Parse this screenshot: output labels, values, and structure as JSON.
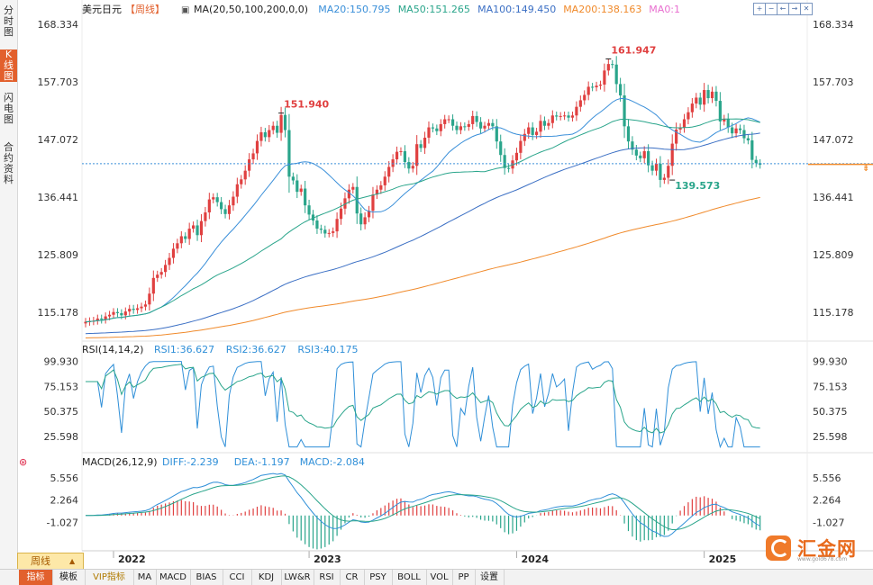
{
  "sidebar": {
    "tabs": [
      {
        "label": "分时图",
        "active": false
      },
      {
        "label": "K线图",
        "active": true
      },
      {
        "label": "闪电图",
        "active": false
      },
      {
        "label": "合约资料",
        "active": false
      }
    ]
  },
  "header": {
    "symbol": "美元日元",
    "period_tag": "【周线】",
    "ma_label": "MA(20,50,100,200,0,0)",
    "ma_values": [
      {
        "text": "MA20:150.795",
        "color": "#3a8fd9"
      },
      {
        "text": "MA50:151.265",
        "color": "#2aa58b"
      },
      {
        "text": "MA100:149.450",
        "color": "#3b6fc4"
      },
      {
        "text": "MA200:138.163",
        "color": "#f08a2b"
      },
      {
        "text": "MA0:1",
        "color": "#e86fd0"
      }
    ]
  },
  "toolbar": {
    "buttons": [
      "+",
      "−",
      "←",
      "→",
      "✕"
    ]
  },
  "rsi_header": {
    "label": "RSI(14,14,2)",
    "values": [
      {
        "text": "RSI1:36.627",
        "color": "#2f8fd8"
      },
      {
        "text": "RSI2:36.627",
        "color": "#2f8fd8"
      },
      {
        "text": "RSI3:40.175",
        "color": "#2f8fd8"
      }
    ]
  },
  "macd_header": {
    "label": "MACD(26,12,9)",
    "values": [
      {
        "text": "DIFF:-2.239",
        "color": "#2f8fd8"
      },
      {
        "text": "DEA:-1.197",
        "color": "#2f8fd8"
      },
      {
        "text": "MACD:-2.084",
        "color": "#2f8fd8"
      }
    ]
  },
  "bottom_bar": {
    "period": "周线",
    "items": [
      {
        "label": "指标",
        "active": true
      },
      {
        "label": "模板"
      },
      {
        "label": "VIP指标",
        "vip": true
      },
      {
        "label": "MA"
      },
      {
        "label": "MACD"
      },
      {
        "label": "BIAS"
      },
      {
        "label": "CCI"
      },
      {
        "label": "KDJ"
      },
      {
        "label": "LW&R"
      },
      {
        "label": "RSI"
      },
      {
        "label": "CR"
      },
      {
        "label": "PSY"
      },
      {
        "label": "BOLL"
      },
      {
        "label": "VOL"
      },
      {
        "label": "PP"
      },
      {
        "label": "设置"
      }
    ]
  },
  "logo": {
    "name": "汇金网",
    "url": "www.gold678.com"
  },
  "chart_data": {
    "type": "candlestick",
    "title": "美元日元 周线",
    "price_axis": {
      "ticks": [
        168.334,
        157.703,
        147.072,
        136.441,
        125.809,
        115.178
      ],
      "range": [
        110.5,
        169.5
      ]
    },
    "current_price": 142.6,
    "x_axis": {
      "labels": [
        "2022",
        "2023",
        "2024",
        "2025"
      ],
      "label_index": [
        7,
        56,
        108,
        155
      ]
    },
    "annotations": [
      {
        "text": "151.940",
        "index": 49,
        "value": 151.94,
        "side": "top",
        "color": "#e04040"
      },
      {
        "text": "161.947",
        "index": 131,
        "value": 161.947,
        "side": "top",
        "color": "#e04040"
      },
      {
        "text": "139.573",
        "index": 147,
        "value": 139.573,
        "side": "bottom",
        "color": "#2aa58b"
      }
    ],
    "candle_colors": {
      "up": "#e04040",
      "down": "#2aa58b"
    },
    "closes": [
      113.4,
      113.5,
      113.6,
      114.0,
      113.8,
      114.4,
      114.7,
      115.2,
      115.0,
      114.6,
      115.3,
      115.8,
      115.6,
      115.9,
      116.2,
      116.6,
      118.6,
      121.5,
      122.1,
      122.6,
      123.9,
      125.2,
      126.9,
      127.9,
      129.2,
      128.7,
      130.6,
      131.2,
      129.4,
      132.0,
      133.6,
      136.0,
      136.4,
      135.5,
      134.2,
      133.3,
      134.9,
      136.5,
      138.8,
      139.7,
      141.3,
      143.4,
      144.5,
      146.8,
      148.4,
      147.5,
      148.8,
      149.6,
      148.3,
      151.6,
      148.8,
      140.2,
      139.5,
      137.4,
      138.0,
      134.9,
      133.2,
      132.1,
      130.6,
      130.4,
      129.7,
      129.8,
      130.1,
      132.4,
      134.3,
      136.2,
      137.8,
      138.3,
      133.4,
      131.4,
      132.7,
      133.9,
      136.9,
      137.8,
      138.6,
      140.2,
      142.0,
      143.4,
      144.8,
      144.9,
      142.9,
      141.7,
      142.2,
      146.2,
      145.5,
      147.4,
      149.3,
      149.1,
      148.6,
      149.9,
      150.8,
      150.8,
      149.6,
      148.8,
      149.5,
      149.4,
      149.9,
      151.4,
      150.3,
      149.1,
      149.6,
      150.1,
      149.5,
      146.7,
      144.2,
      141.8,
      141.7,
      143.2,
      144.6,
      146.8,
      148.1,
      149.3,
      147.9,
      148.5,
      150.5,
      149.6,
      150.1,
      151.5,
      151.3,
      151.4,
      151.5,
      151.1,
      151.5,
      153.1,
      154.3,
      155.3,
      156.8,
      156.7,
      157.0,
      157.2,
      159.8,
      161.0,
      160.9,
      157.3,
      155.2,
      149.5,
      146.7,
      145.2,
      144.1,
      143.6,
      144.9,
      142.3,
      141.3,
      142.6,
      139.6,
      140.0,
      142.2,
      146.3,
      148.9,
      149.3,
      150.8,
      152.1,
      153.7,
      154.8,
      153.5,
      156.2,
      154.7,
      155.9,
      154.2,
      150.4,
      150.9,
      149.3,
      148.2,
      149.1,
      148.8,
      147.3,
      146.9,
      143.3,
      142.7,
      142.4
    ]
  }
}
